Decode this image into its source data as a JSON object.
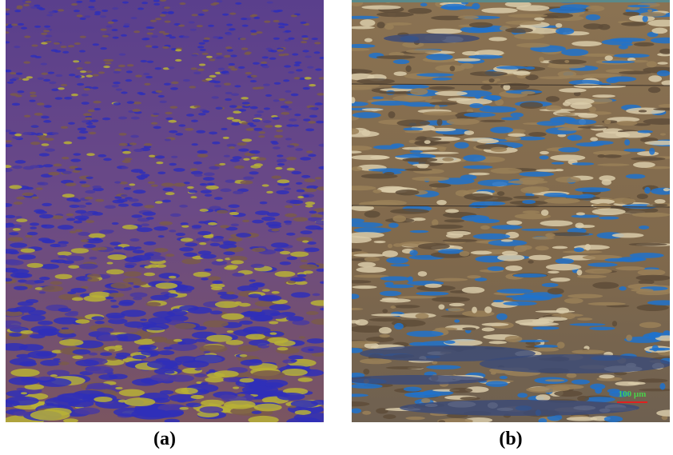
{
  "panels": [
    {
      "label": "(a)"
    },
    {
      "label": "(b)",
      "scale_bar": "100 μm"
    }
  ]
}
